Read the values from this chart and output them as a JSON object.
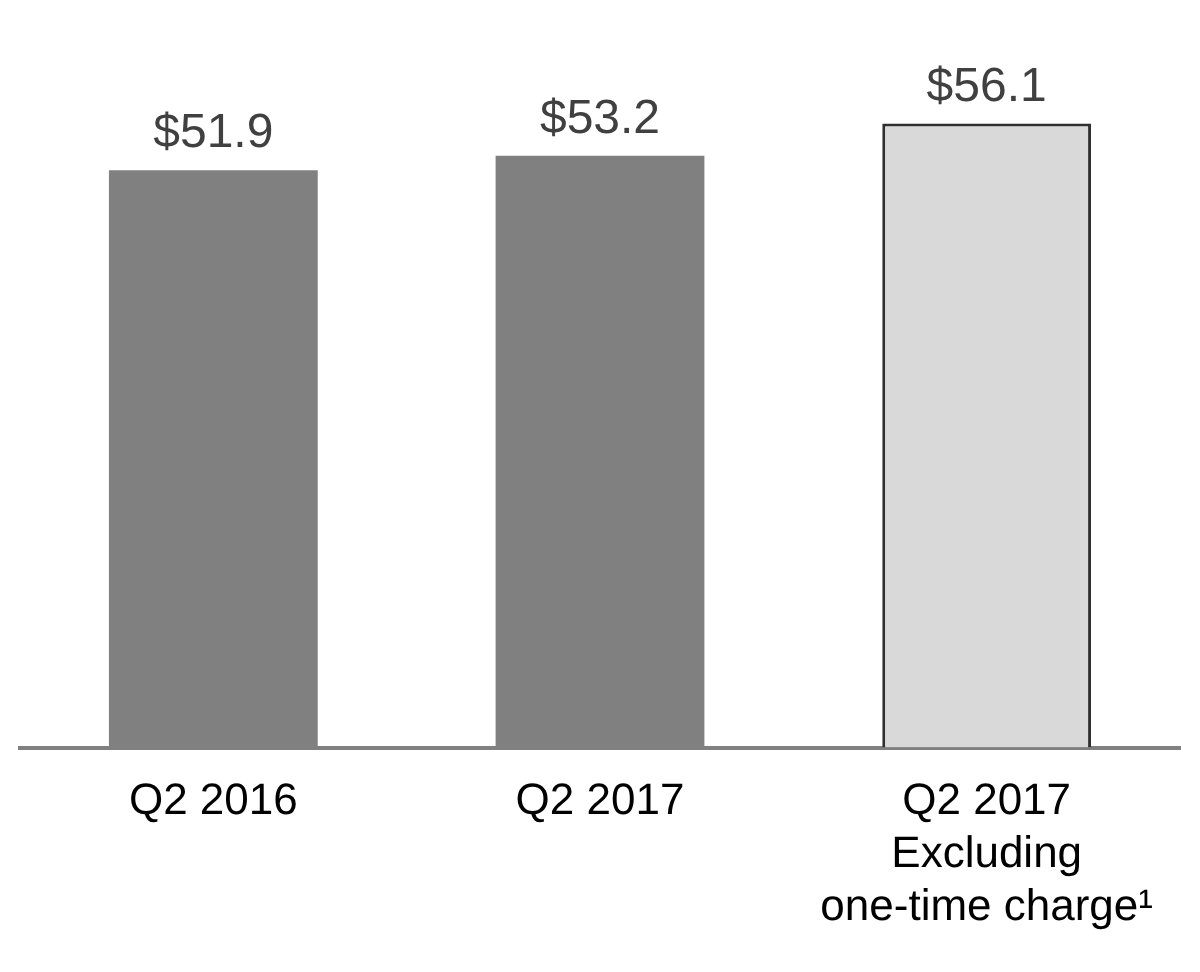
{
  "chart_data": {
    "type": "bar",
    "categories": [
      "Q2 2016",
      "Q2 2017",
      "Q2 2017\nExcluding\none-time charge¹"
    ],
    "values": [
      51.9,
      53.2,
      56.1
    ],
    "colors": [
      "#808080",
      "#808080",
      "#d9d9d9"
    ],
    "value_labels": [
      "$51.9",
      "$53.2",
      "$56.1"
    ],
    "grid": false,
    "legend": false
  }
}
